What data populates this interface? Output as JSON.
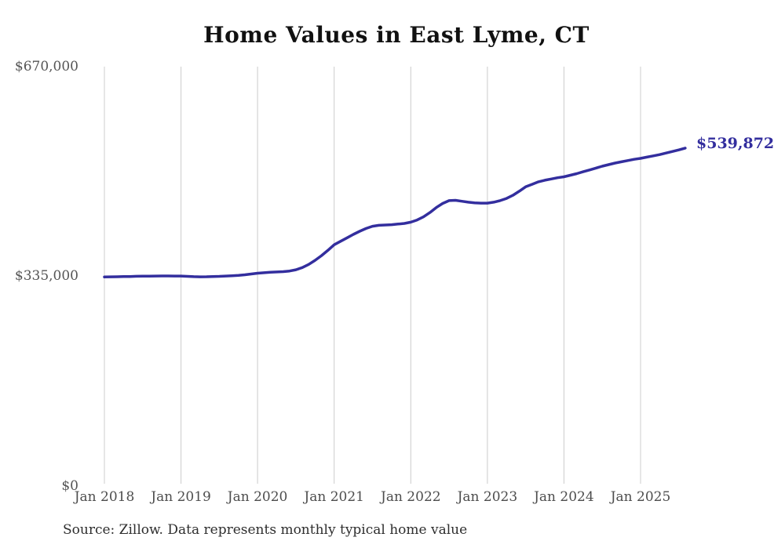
{
  "chart_data": {
    "type": "line",
    "title": "Home Values in East Lyme, CT",
    "xlabel": "",
    "ylabel": "",
    "ylim": [
      0,
      670000
    ],
    "y_ticks": [
      670000,
      335000,
      0
    ],
    "y_tick_labels": [
      "$670,000",
      "$335,000",
      "$0"
    ],
    "x_tick_labels": [
      "Jan 2018",
      "Jan 2019",
      "Jan 2020",
      "Jan 2021",
      "Jan 2022",
      "Jan 2023",
      "Jan 2024",
      "Jan 2025"
    ],
    "grid": "vertical-only",
    "legend": "none",
    "end_label": "$539,872",
    "end_value": 539872,
    "series": [
      {
        "name": "Typical home value",
        "color": "#332e9e",
        "months": [
          "2018-01",
          "2018-02",
          "2018-03",
          "2018-04",
          "2018-05",
          "2018-06",
          "2018-07",
          "2018-08",
          "2018-09",
          "2018-10",
          "2018-11",
          "2018-12",
          "2019-01",
          "2019-02",
          "2019-03",
          "2019-04",
          "2019-05",
          "2019-06",
          "2019-07",
          "2019-08",
          "2019-09",
          "2019-10",
          "2019-11",
          "2019-12",
          "2020-01",
          "2020-02",
          "2020-03",
          "2020-04",
          "2020-05",
          "2020-06",
          "2020-07",
          "2020-08",
          "2020-09",
          "2020-10",
          "2020-11",
          "2020-12",
          "2021-01",
          "2021-02",
          "2021-03",
          "2021-04",
          "2021-05",
          "2021-06",
          "2021-07",
          "2021-08",
          "2021-09",
          "2021-10",
          "2021-11",
          "2021-12",
          "2022-01",
          "2022-02",
          "2022-03",
          "2022-04",
          "2022-05",
          "2022-06",
          "2022-07",
          "2022-08",
          "2022-09",
          "2022-10",
          "2022-11",
          "2022-12",
          "2023-01",
          "2023-02",
          "2023-03",
          "2023-04",
          "2023-05",
          "2023-06",
          "2023-07",
          "2023-08",
          "2023-09",
          "2023-10",
          "2023-11",
          "2023-12",
          "2024-01",
          "2024-02",
          "2024-03",
          "2024-04",
          "2024-05",
          "2024-06",
          "2024-07",
          "2024-08",
          "2024-09",
          "2024-10",
          "2024-11",
          "2024-12",
          "2025-01",
          "2025-02",
          "2025-03",
          "2025-04",
          "2025-05",
          "2025-06",
          "2025-07",
          "2025-08"
        ],
        "values": [
          334000,
          334200,
          334400,
          334600,
          334800,
          335100,
          335300,
          335400,
          335500,
          335600,
          335600,
          335500,
          335500,
          335000,
          334500,
          334200,
          334400,
          334700,
          335000,
          335500,
          336000,
          336500,
          337500,
          338700,
          340000,
          340800,
          341500,
          342000,
          342500,
          343500,
          345500,
          349000,
          354000,
          360500,
          368000,
          376500,
          385500,
          391000,
          396500,
          402000,
          407000,
          411500,
          415000,
          416500,
          417000,
          417500,
          418500,
          419500,
          421500,
          425000,
          430000,
          437000,
          445000,
          451500,
          456000,
          456500,
          455000,
          453500,
          452500,
          452000,
          452000,
          453500,
          456000,
          459500,
          464500,
          471000,
          478000,
          482000,
          486000,
          488500,
          490500,
          492500,
          494000,
          496500,
          499000,
          502000,
          505000,
          508000,
          511000,
          513500,
          516000,
          518000,
          520000,
          522000,
          523500,
          525500,
          527500,
          529500,
          532000,
          534500,
          537000,
          539872
        ]
      }
    ]
  },
  "footer": {
    "source": "Source: Zillow. Data represents monthly typical home value"
  },
  "colors": {
    "line": "#332e9e",
    "gridline": "#cccccc",
    "title_text": "#111111",
    "axis_text": "#4d4d4d",
    "end_label_text": "#332e9e"
  }
}
